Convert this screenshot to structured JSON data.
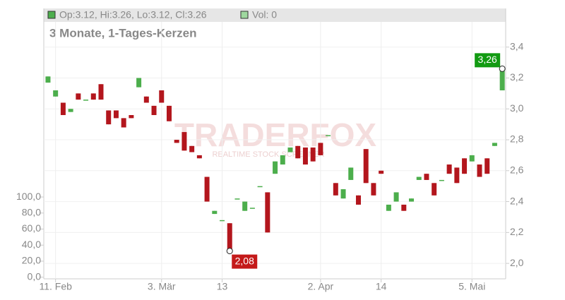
{
  "chart_data": {
    "type": "candlestick",
    "legend": {
      "ohlc": "Op:3.12, Hi:3.26, Lo:3.12, Cl:3.26",
      "volume": "Vol: 0"
    },
    "subtitle": "3 Monate, 1-Tages-Kerzen",
    "watermark": {
      "brand": "TRADERFOX",
      "tagline": "REALTIME STOCK SCREENER"
    },
    "categories": [
      null,
      "11. Feb",
      null,
      null,
      null,
      null,
      null,
      null,
      null,
      null,
      null,
      null,
      null,
      null,
      null,
      "3. Mär",
      null,
      null,
      null,
      null,
      null,
      null,
      null,
      "13",
      null,
      null,
      null,
      null,
      null,
      null,
      null,
      null,
      null,
      null,
      null,
      null,
      "2. Apr",
      null,
      null,
      null,
      null,
      null,
      null,
      null,
      "14",
      null,
      null,
      null,
      null,
      null,
      null,
      null,
      null,
      null,
      null,
      null,
      "5. Mai",
      null,
      null,
      null,
      null
    ],
    "open": [
      3.17,
      3.08,
      3.04,
      2.98,
      3.1,
      3.06,
      3.1,
      3.16,
      2.99,
      2.99,
      2.94,
      2.96,
      3.14,
      3.08,
      3.02,
      3.12,
      3.02,
      2.8,
      2.85,
      2.76,
      2.7,
      2.56,
      2.32,
      2.28,
      2.26,
      2.42,
      2.34,
      2.36,
      2.5,
      2.46,
      2.58,
      2.64,
      2.72,
      2.76,
      2.75,
      2.75,
      2.78,
      2.83,
      2.52,
      2.42,
      2.54,
      2.44,
      2.74,
      2.52,
      2.6,
      2.34,
      2.4,
      2.38,
      2.4,
      2.54,
      2.58,
      2.52,
      2.54,
      2.64,
      2.62,
      2.68,
      2.66,
      2.64,
      2.68,
      2.76,
      3.12
    ],
    "high": [
      3.21,
      3.12,
      3.04,
      3.0,
      3.1,
      3.06,
      3.1,
      3.16,
      2.99,
      2.99,
      2.94,
      2.96,
      3.2,
      3.08,
      3.02,
      3.12,
      3.02,
      2.8,
      2.85,
      2.76,
      2.7,
      2.56,
      2.34,
      2.28,
      2.26,
      2.42,
      2.4,
      2.36,
      2.5,
      2.46,
      2.66,
      2.7,
      2.75,
      2.76,
      2.75,
      2.75,
      2.78,
      2.83,
      2.52,
      2.48,
      2.62,
      2.44,
      2.74,
      2.52,
      2.6,
      2.38,
      2.46,
      2.38,
      2.42,
      2.56,
      2.58,
      2.52,
      2.54,
      2.64,
      2.62,
      2.68,
      2.7,
      2.64,
      2.68,
      2.78,
      3.26
    ],
    "low": [
      3.17,
      3.08,
      2.96,
      2.98,
      3.06,
      3.06,
      3.06,
      3.06,
      2.9,
      2.94,
      2.88,
      2.94,
      3.14,
      3.04,
      2.96,
      3.04,
      2.92,
      2.78,
      2.73,
      2.72,
      2.68,
      2.4,
      2.32,
      2.28,
      2.08,
      2.42,
      2.34,
      2.36,
      2.5,
      2.2,
      2.58,
      2.64,
      2.72,
      2.68,
      2.64,
      2.66,
      2.7,
      2.83,
      2.44,
      2.42,
      2.54,
      2.38,
      2.52,
      2.44,
      2.58,
      2.34,
      2.4,
      2.34,
      2.4,
      2.54,
      2.54,
      2.44,
      2.54,
      2.58,
      2.52,
      2.58,
      2.66,
      2.56,
      2.58,
      2.76,
      3.12
    ],
    "close": [
      3.21,
      3.12,
      2.96,
      3.0,
      3.06,
      3.06,
      3.06,
      3.06,
      2.9,
      2.94,
      2.88,
      2.94,
      3.2,
      3.04,
      2.96,
      3.04,
      2.92,
      2.78,
      2.73,
      2.72,
      2.68,
      2.4,
      2.34,
      2.28,
      2.08,
      2.42,
      2.4,
      2.36,
      2.5,
      2.2,
      2.66,
      2.7,
      2.75,
      2.68,
      2.64,
      2.66,
      2.7,
      2.83,
      2.44,
      2.48,
      2.62,
      2.38,
      2.52,
      2.44,
      2.58,
      2.38,
      2.46,
      2.34,
      2.42,
      2.56,
      2.54,
      2.44,
      2.54,
      2.58,
      2.52,
      2.58,
      2.7,
      2.56,
      2.58,
      2.78,
      3.26
    ],
    "up_color": "#4cae4c",
    "down_color": "#b3161d",
    "volume_color": "#9fd89f",
    "ylim": [
      1.9,
      3.65
    ],
    "yticks": [
      {
        "value": 2.0,
        "label": "2,0"
      },
      {
        "value": 2.2,
        "label": "2,2"
      },
      {
        "value": 2.4,
        "label": "2,4"
      },
      {
        "value": 2.6,
        "label": "2,6"
      },
      {
        "value": 2.8,
        "label": "2,8"
      },
      {
        "value": 3.0,
        "label": "3,0"
      },
      {
        "value": 3.2,
        "label": "3,2"
      },
      {
        "value": 3.4,
        "label": "3,4"
      }
    ],
    "y2lim": [
      -2,
      335
    ],
    "y2ticks": [
      {
        "value": 0,
        "label": "0,0"
      },
      {
        "value": 20,
        "label": "20,0"
      },
      {
        "value": 40,
        "label": "40,0"
      },
      {
        "value": 60,
        "label": "60,0"
      },
      {
        "value": 80,
        "label": "80,0"
      },
      {
        "value": 100,
        "label": "100,0"
      }
    ],
    "annotations": [
      {
        "label": "3,26",
        "value": 3.26,
        "color": "#119a11"
      },
      {
        "label": "2,08",
        "value": 2.08,
        "color": "#c41a1a"
      }
    ],
    "grid": true
  }
}
